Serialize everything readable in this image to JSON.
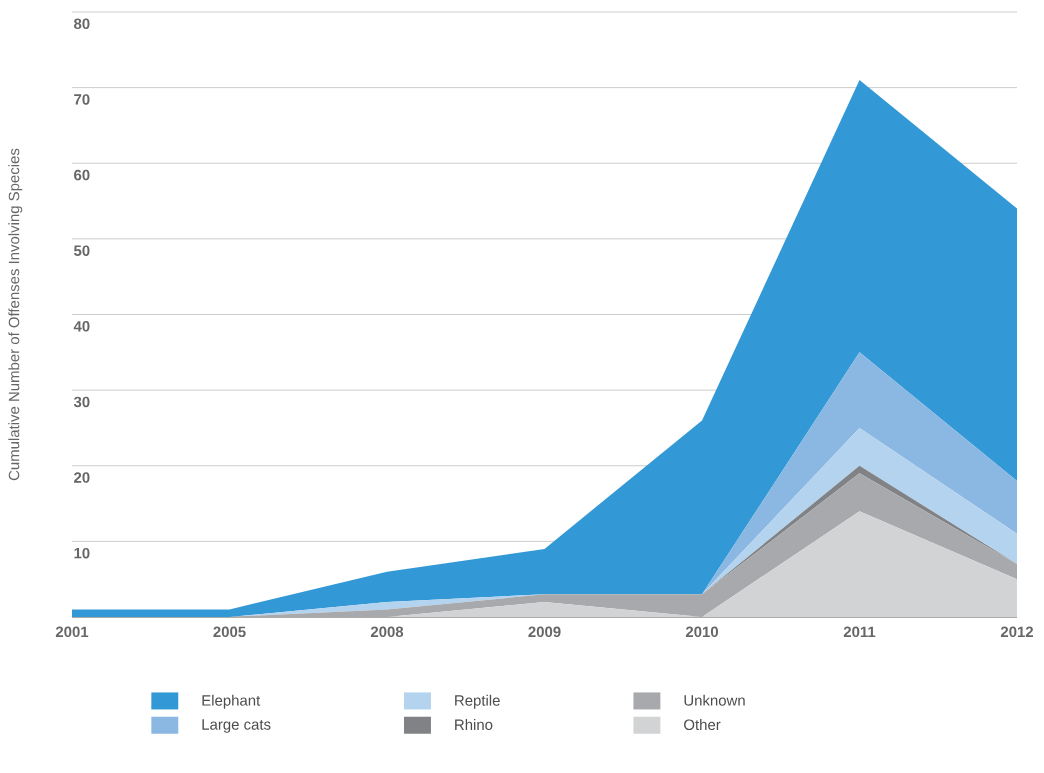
{
  "chart_data": {
    "type": "area",
    "stacked": true,
    "ylabel": "Cumulative Number of Offenses Involving Species",
    "categories": [
      "2001",
      "2005",
      "2008",
      "2009",
      "2010",
      "2011",
      "2012"
    ],
    "series": [
      {
        "name": "Other",
        "color": "#d1d3d4",
        "values": [
          0,
          0,
          0,
          2,
          0,
          14,
          5
        ]
      },
      {
        "name": "Unknown",
        "color": "#a7a9ac",
        "values": [
          0,
          0,
          1,
          1,
          3,
          5,
          2
        ]
      },
      {
        "name": "Rhino",
        "color": "#808285",
        "values": [
          0,
          0,
          0,
          0,
          0,
          1,
          0
        ]
      },
      {
        "name": "Reptile",
        "color": "#b4d3ee",
        "values": [
          0,
          0,
          1,
          0,
          0,
          5,
          4
        ]
      },
      {
        "name": "Large cats",
        "color": "#8ab8e3",
        "values": [
          0,
          0,
          0,
          0,
          0,
          10,
          7
        ]
      },
      {
        "name": "Elephant",
        "color": "#3399d6",
        "values": [
          1,
          1,
          4,
          6,
          23,
          36,
          36
        ]
      }
    ],
    "ylim": [
      0,
      80
    ],
    "yticks": [
      {
        "value": 0,
        "label": null
      },
      10,
      20,
      30,
      40,
      50,
      60,
      70,
      80
    ],
    "grid": "y",
    "legend": "bottom"
  }
}
